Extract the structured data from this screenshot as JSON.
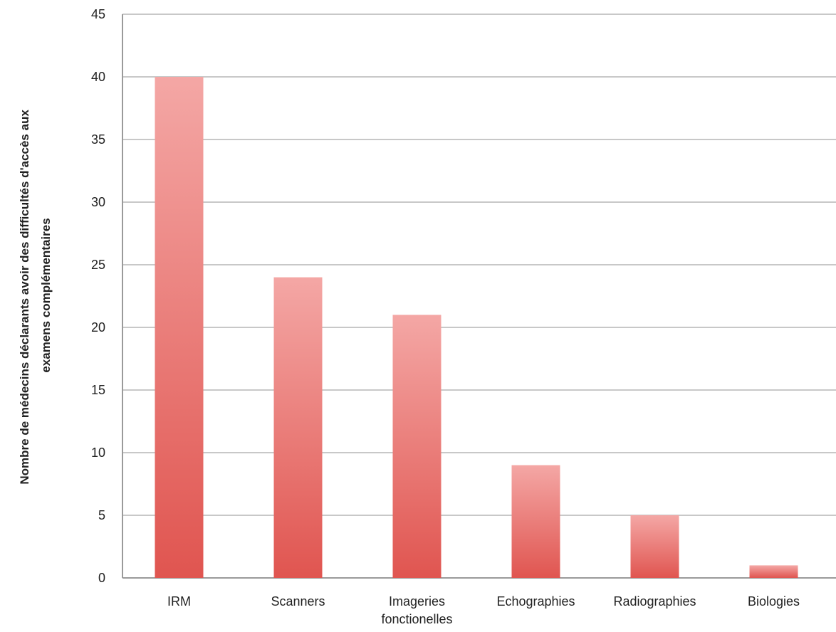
{
  "chart_data": {
    "type": "bar",
    "title": "",
    "xlabel": "",
    "ylabel": {
      "line1": "Nombre de médecins déclarants avoir des difficultés d'accès aux",
      "line2": "examens complémentaires"
    },
    "categories": [
      {
        "line1": "IRM",
        "line2": ""
      },
      {
        "line1": "Scanners",
        "line2": ""
      },
      {
        "line1": "Imageries",
        "line2": "fonctionelles"
      },
      {
        "line1": "Echographies",
        "line2": ""
      },
      {
        "line1": "Radiographies",
        "line2": ""
      },
      {
        "line1": "Biologies",
        "line2": ""
      }
    ],
    "values": [
      40,
      24,
      21,
      9,
      5,
      1
    ],
    "ylim": [
      0,
      45
    ],
    "yticks": [
      "0",
      "5",
      "10",
      "15",
      "20",
      "25",
      "30",
      "35",
      "40",
      "45"
    ],
    "grid": true,
    "legend": "none",
    "colors": {
      "bar_top": "#f4a7a5",
      "bar_bottom": "#e05550",
      "grid": "#c8c8c8",
      "axis": "#9a9a9a",
      "text": "#222222"
    }
  }
}
